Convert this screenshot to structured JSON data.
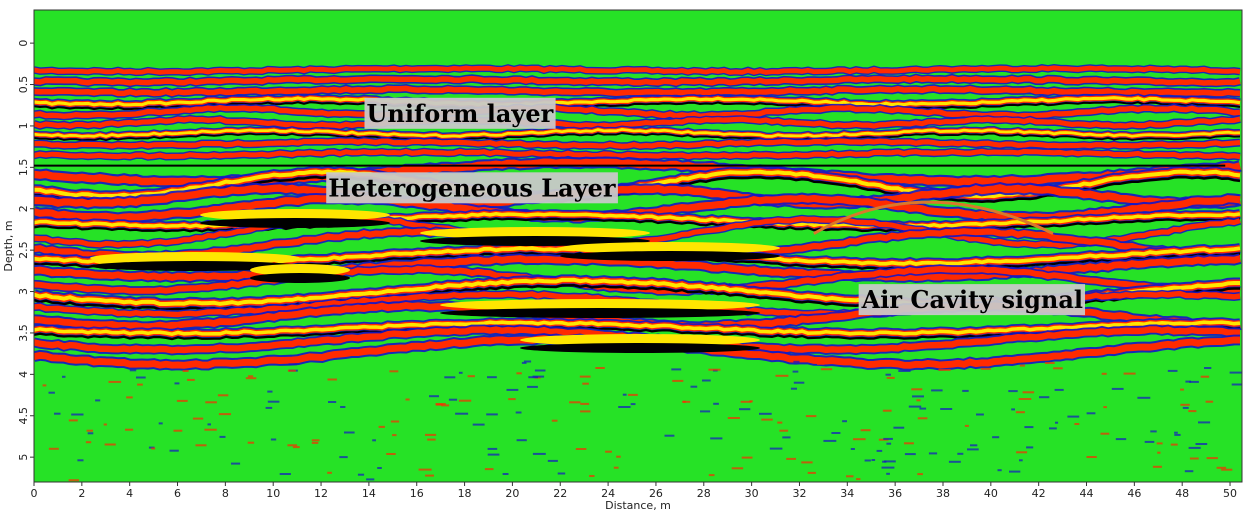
{
  "chart_data": {
    "type": "heatmap",
    "title": "",
    "xlabel": "Distance, m",
    "ylabel": "Depth, m",
    "xlim": [
      0,
      50.5
    ],
    "ylim": [
      -0.4,
      5.3
    ],
    "x_ticks": [
      0,
      2,
      4,
      6,
      8,
      10,
      12,
      14,
      16,
      18,
      20,
      22,
      24,
      26,
      28,
      30,
      32,
      34,
      36,
      38,
      40,
      42,
      44,
      46,
      48,
      50
    ],
    "y_ticks": [
      0,
      0.5,
      1,
      1.5,
      2,
      2.5,
      3,
      3.5,
      4,
      4.5,
      5
    ],
    "y_tick_labels": [
      "0",
      "0.5",
      "1",
      "1.5",
      "2",
      "2.5",
      "3",
      "3.5",
      "4",
      "4.5",
      "5"
    ],
    "colormap": [
      "#1515c8",
      "#26e226",
      "#ff2a00",
      "#ffe600",
      "#ffffff",
      "#000000"
    ],
    "boundary_depth": 1.48,
    "annotations": [
      {
        "text": "Uniform layer",
        "x": 13.9,
        "y": 0.95
      },
      {
        "text": "Heterogeneous Layer",
        "x": 12.3,
        "y": 1.85
      },
      {
        "text": "Air Cavity signal",
        "x": 34.6,
        "y": 3.2
      }
    ],
    "cavity_hyperbola": {
      "apex_x": 37.2,
      "apex_y": 1.9,
      "left_x": 32.6,
      "right_x": 42.6,
      "limb_y": 2.3
    }
  }
}
